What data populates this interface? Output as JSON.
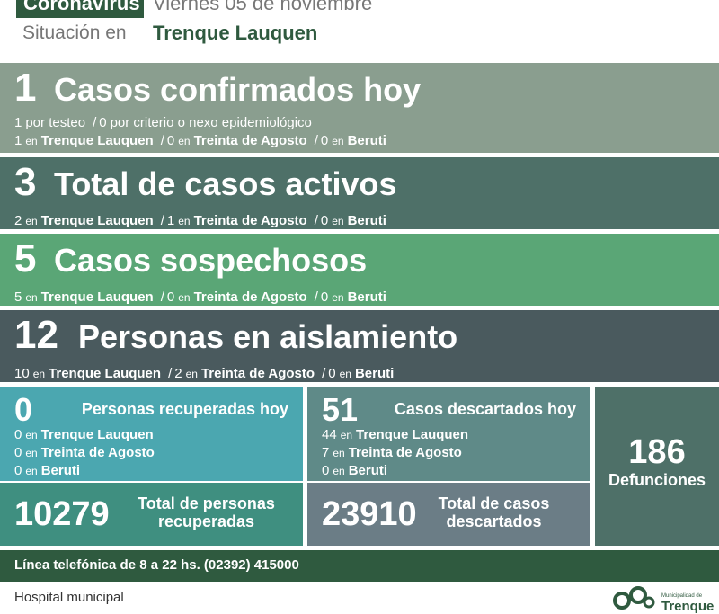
{
  "header": {
    "tag": "Coronavirus",
    "date": "Viernes 05 de noviembre",
    "situation_label": "Situación en",
    "place": "Trenque Lauquen"
  },
  "connector": "en",
  "separator": "/",
  "bands": [
    {
      "value": 1,
      "title": "Casos confirmados hoy",
      "lines": [
        [
          {
            "count": 1,
            "text": "por testeo"
          },
          {
            "count": 0,
            "text": "por criterio o nexo epidemiológico"
          }
        ],
        [
          {
            "count": 1,
            "place": "Trenque Lauquen"
          },
          {
            "count": 0,
            "place": "Treinta de Agosto"
          },
          {
            "count": 0,
            "place": "Beruti"
          }
        ]
      ]
    },
    {
      "value": 3,
      "title": "Total de casos activos",
      "lines": [
        [
          {
            "count": 2,
            "place": "Trenque Lauquen"
          },
          {
            "count": 1,
            "place": "Treinta de Agosto"
          },
          {
            "count": 0,
            "place": "Beruti"
          }
        ]
      ]
    },
    {
      "value": 5,
      "title": "Casos sospechosos",
      "lines": [
        [
          {
            "count": 5,
            "place": "Trenque Lauquen"
          },
          {
            "count": 0,
            "place": "Treinta de Agosto"
          },
          {
            "count": 0,
            "place": "Beruti"
          }
        ]
      ]
    },
    {
      "value": 12,
      "title": "Personas en aislamiento",
      "lines": [
        [
          {
            "count": 10,
            "place": "Trenque Lauquen"
          },
          {
            "count": 2,
            "place": "Treinta de Agosto"
          },
          {
            "count": 0,
            "place": "Beruti"
          }
        ]
      ]
    }
  ],
  "recovered": {
    "value": 0,
    "title": "Personas recuperadas hoy",
    "breakdown": [
      {
        "count": 0,
        "place": "Trenque Lauquen"
      },
      {
        "count": 0,
        "place": "Treinta de Agosto"
      },
      {
        "count": 0,
        "place": "Beruti"
      }
    ],
    "total": 10279,
    "total_label": "Total de personas recuperadas"
  },
  "discarded": {
    "value": 51,
    "title": "Casos descartados hoy",
    "breakdown": [
      {
        "count": 44,
        "place": "Trenque Lauquen"
      },
      {
        "count": 7,
        "place": "Treinta de Agosto"
      },
      {
        "count": 0,
        "place": "Beruti"
      }
    ],
    "total": 23910,
    "total_label": "Total de casos descartados"
  },
  "deaths": {
    "value": 186,
    "label": "Defunciones"
  },
  "phone": "Línea telefónica de 8 a 22 hs. (02392) 415000",
  "footer": {
    "text": "Hospital municipal",
    "logo_small": "Municipalidad de",
    "logo_big": "Trenque"
  }
}
